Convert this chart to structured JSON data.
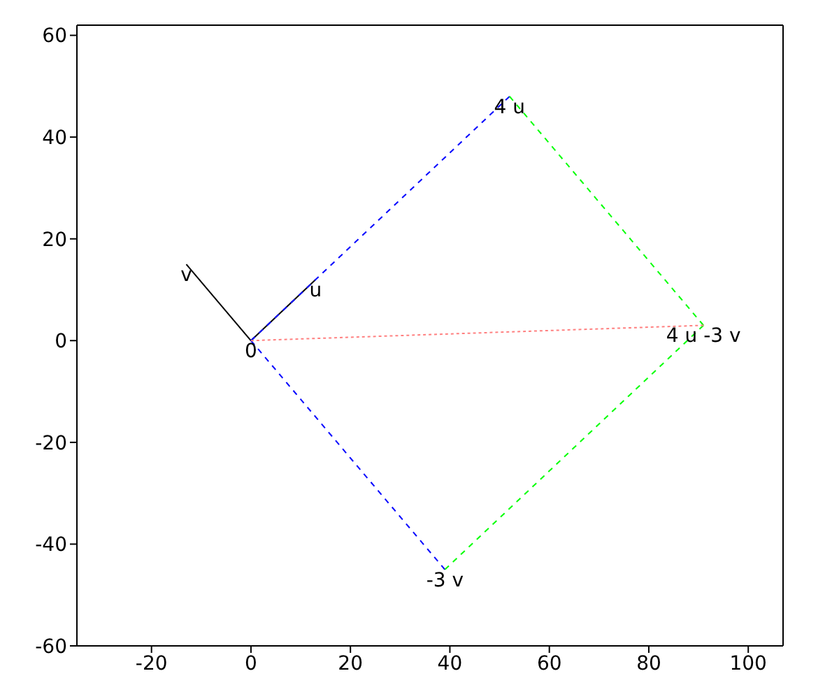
{
  "chart_data": {
    "type": "line",
    "xlim": [
      -35,
      107
    ],
    "ylim": [
      -60,
      62
    ],
    "xticks": [
      -20,
      0,
      20,
      40,
      60,
      80,
      100
    ],
    "yticks": [
      -60,
      -40,
      -20,
      0,
      20,
      40,
      60
    ],
    "grid": false,
    "marker": "none",
    "series": [
      {
        "color": "#000000",
        "line_style": "solid",
        "x": [
          0,
          13
        ],
        "values": [
          0,
          12
        ]
      },
      {
        "color": "#000000",
        "line_style": "solid",
        "x": [
          0,
          -13
        ],
        "values": [
          0,
          15
        ]
      },
      {
        "color": "#0000ff",
        "line_style": "dashed",
        "x": [
          0,
          52
        ],
        "values": [
          0,
          48
        ]
      },
      {
        "color": "#0000ff",
        "line_style": "dashed",
        "x": [
          0,
          39
        ],
        "values": [
          0,
          -45
        ]
      },
      {
        "color": "#00ff00",
        "line_style": "dashed",
        "x": [
          52,
          91
        ],
        "values": [
          48,
          3
        ]
      },
      {
        "color": "#00ff00",
        "line_style": "dashed",
        "x": [
          39,
          91
        ],
        "values": [
          -45,
          3
        ]
      },
      {
        "color": "#ff8080",
        "line_style": "dotted",
        "x": [
          0,
          91
        ],
        "values": [
          0,
          3
        ]
      }
    ],
    "annotations": [
      {
        "text": "0",
        "x": 0,
        "y": 0
      },
      {
        "text": "u",
        "x": 13,
        "y": 12
      },
      {
        "text": "v",
        "x": -13,
        "y": 15
      },
      {
        "text": "4 u",
        "x": 52,
        "y": 48
      },
      {
        "text": "-3 v",
        "x": 39,
        "y": -45
      },
      {
        "text": "4 u -3 v",
        "x": 91,
        "y": 3
      }
    ]
  }
}
